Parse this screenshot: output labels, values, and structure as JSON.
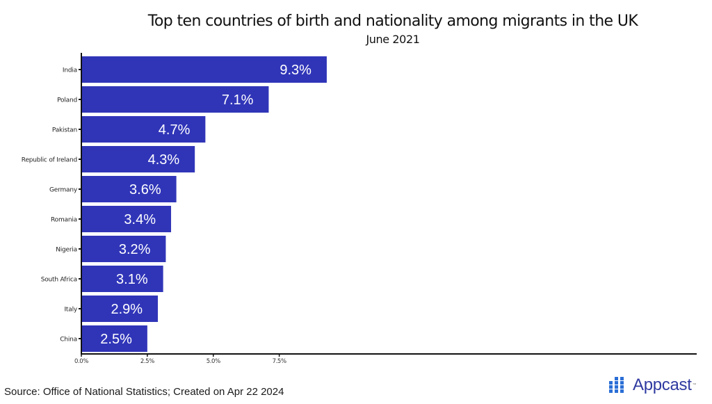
{
  "chart_data": {
    "type": "bar",
    "orientation": "horizontal",
    "title": "Top ten countries of birth and nationality among migrants in the UK",
    "subtitle": "June 2021",
    "categories": [
      "India",
      "Poland",
      "Pakistan",
      "Republic of Ireland",
      "Germany",
      "Romania",
      "Nigeria",
      "South Africa",
      "Italy",
      "China"
    ],
    "values": [
      9.3,
      7.1,
      4.7,
      4.3,
      3.6,
      3.4,
      3.2,
      3.1,
      2.9,
      2.5
    ],
    "data_labels": [
      "9.3%",
      "7.1%",
      "4.7%",
      "4.3%",
      "3.6%",
      "3.4%",
      "3.2%",
      "3.1%",
      "2.9%",
      "2.5%"
    ],
    "xlabel": "",
    "ylabel": "",
    "xlim": [
      0,
      9.3
    ],
    "x_ticks": [
      0,
      2.5,
      5.0,
      7.5
    ],
    "x_tick_labels": [
      "0.0%",
      "2.5%",
      "5.0%",
      "7.5%"
    ],
    "grid": false,
    "bar_color": "#3035B8",
    "label_color": "#ffffff"
  },
  "footer": {
    "source": "Source: Office of National Statistics; Created on Apr 22 2024",
    "logo_text": "Appcast",
    "logo_tm": "™"
  }
}
